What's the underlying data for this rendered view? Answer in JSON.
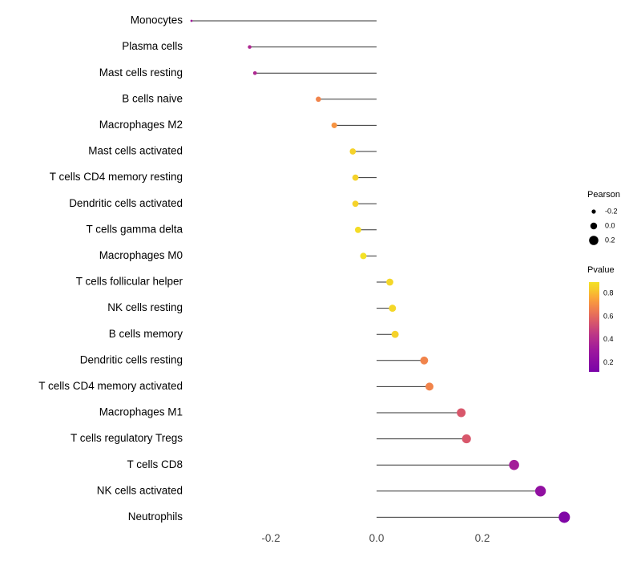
{
  "chart_data": {
    "type": "scatter",
    "subtype": "lollipop",
    "title": "",
    "xlabel": "",
    "ylabel": "",
    "grid": false,
    "legend_position": "right",
    "xlim": [
      -0.38,
      0.38
    ],
    "xticks": [
      {
        "value": -0.2,
        "label": "-0.2"
      },
      {
        "value": 0.0,
        "label": "0.0"
      },
      {
        "value": 0.2,
        "label": "0.2"
      }
    ],
    "points": [
      {
        "label": "Monocytes",
        "pearson": -0.35,
        "pvalue": 0.32
      },
      {
        "label": "Plasma cells",
        "pearson": -0.24,
        "pvalue": 0.38
      },
      {
        "label": "Mast cells resting",
        "pearson": -0.23,
        "pvalue": 0.38
      },
      {
        "label": "B cells naive",
        "pearson": -0.11,
        "pvalue": 0.68
      },
      {
        "label": "Macrophages M2",
        "pearson": -0.08,
        "pvalue": 0.72
      },
      {
        "label": "Mast cells activated",
        "pearson": -0.045,
        "pvalue": 0.85
      },
      {
        "label": "T cells CD4 memory resting",
        "pearson": -0.04,
        "pvalue": 0.85
      },
      {
        "label": "Dendritic cells activated",
        "pearson": -0.04,
        "pvalue": 0.85
      },
      {
        "label": "T cells gamma delta",
        "pearson": -0.035,
        "pvalue": 0.87
      },
      {
        "label": "Macrophages M0",
        "pearson": -0.025,
        "pvalue": 0.88
      },
      {
        "label": "T cells follicular helper",
        "pearson": 0.025,
        "pvalue": 0.86
      },
      {
        "label": "NK cells resting",
        "pearson": 0.03,
        "pvalue": 0.86
      },
      {
        "label": "B cells memory",
        "pearson": 0.035,
        "pvalue": 0.85
      },
      {
        "label": "Dendritic cells resting",
        "pearson": 0.09,
        "pvalue": 0.68
      },
      {
        "label": "T cells CD4 memory activated",
        "pearson": 0.1,
        "pvalue": 0.68
      },
      {
        "label": "Macrophages M1",
        "pearson": 0.16,
        "pvalue": 0.55
      },
      {
        "label": "T cells regulatory Tregs",
        "pearson": 0.17,
        "pvalue": 0.55
      },
      {
        "label": "T cells CD8",
        "pearson": 0.26,
        "pvalue": 0.33
      },
      {
        "label": "NK cells activated",
        "pearson": 0.31,
        "pvalue": 0.24
      },
      {
        "label": "Neutrophils",
        "pearson": 0.355,
        "pvalue": 0.15
      }
    ],
    "legend": {
      "pearson": {
        "title": "Pearson",
        "sizes": [
          {
            "value": -0.2,
            "label": "-0.2"
          },
          {
            "value": 0.0,
            "label": "0.0"
          },
          {
            "value": 0.2,
            "label": "0.2"
          }
        ]
      },
      "pvalue": {
        "title": "Pvalue",
        "ticks": [
          {
            "value": 0.8,
            "label": "0.8"
          },
          {
            "value": 0.6,
            "label": "0.6"
          },
          {
            "value": 0.4,
            "label": "0.4"
          },
          {
            "value": 0.2,
            "label": "0.2"
          }
        ],
        "range": [
          0.12,
          0.9
        ]
      }
    },
    "color_scale": {
      "name": "plasma",
      "stops": [
        {
          "p": 0.12,
          "color": "#7a02a8"
        },
        {
          "p": 0.3,
          "color": "#9c179e"
        },
        {
          "p": 0.45,
          "color": "#bd3786"
        },
        {
          "p": 0.55,
          "color": "#d8576b"
        },
        {
          "p": 0.65,
          "color": "#ed7953"
        },
        {
          "p": 0.75,
          "color": "#fb9f3a"
        },
        {
          "p": 0.88,
          "color": "#f3e125"
        }
      ]
    },
    "stem_color": "#333333",
    "text_color": "#000000",
    "tick_text_color": "#4d4d4d",
    "legend_dot_color": "#000000"
  }
}
